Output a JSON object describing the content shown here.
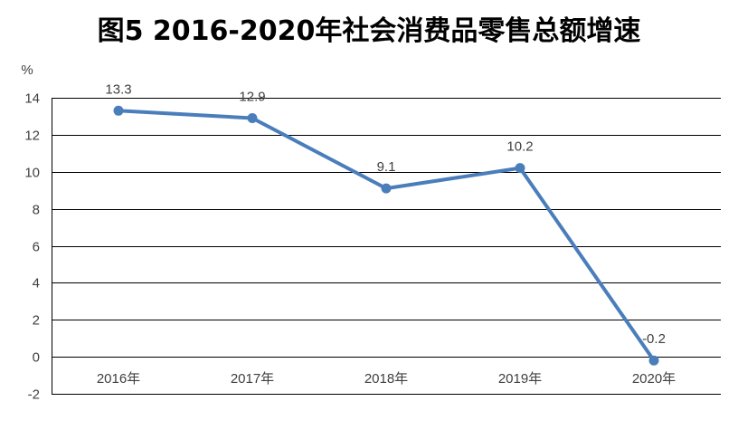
{
  "chart_data": {
    "type": "line",
    "title": "图5  2016-2020年社会消费品零售总额增速",
    "ylabel": "%",
    "xlabel": "",
    "categories": [
      "2016年",
      "2017年",
      "2018年",
      "2019年",
      "2020年"
    ],
    "series": [
      {
        "values": [
          13.3,
          12.9,
          9.1,
          10.2,
          -0.2
        ],
        "data_labels": [
          "13.3",
          "12.9",
          "9.1",
          "10.2",
          "-0.2"
        ]
      }
    ],
    "ylim": [
      -2,
      14
    ],
    "yticks": [
      -2,
      0,
      2,
      4,
      6,
      8,
      10,
      12,
      14
    ],
    "ytick_labels": [
      "-2",
      "0",
      "2",
      "4",
      "6",
      "8",
      "10",
      "12",
      "14"
    ],
    "grid": true,
    "legend": "none",
    "colors": {
      "line": "#4a7ebb",
      "grid": "#000000",
      "text": "#404040"
    }
  }
}
